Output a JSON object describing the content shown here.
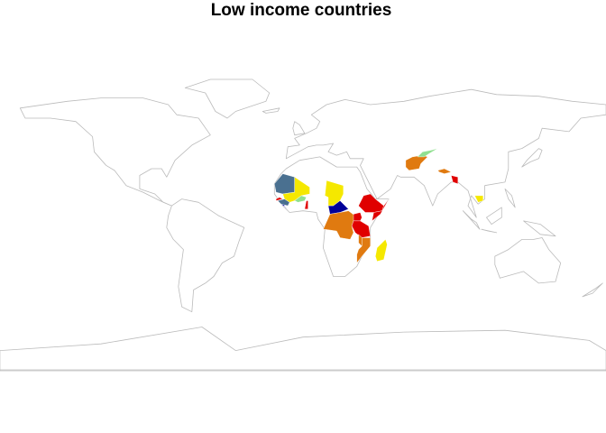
{
  "title": "Low income countries"
}
